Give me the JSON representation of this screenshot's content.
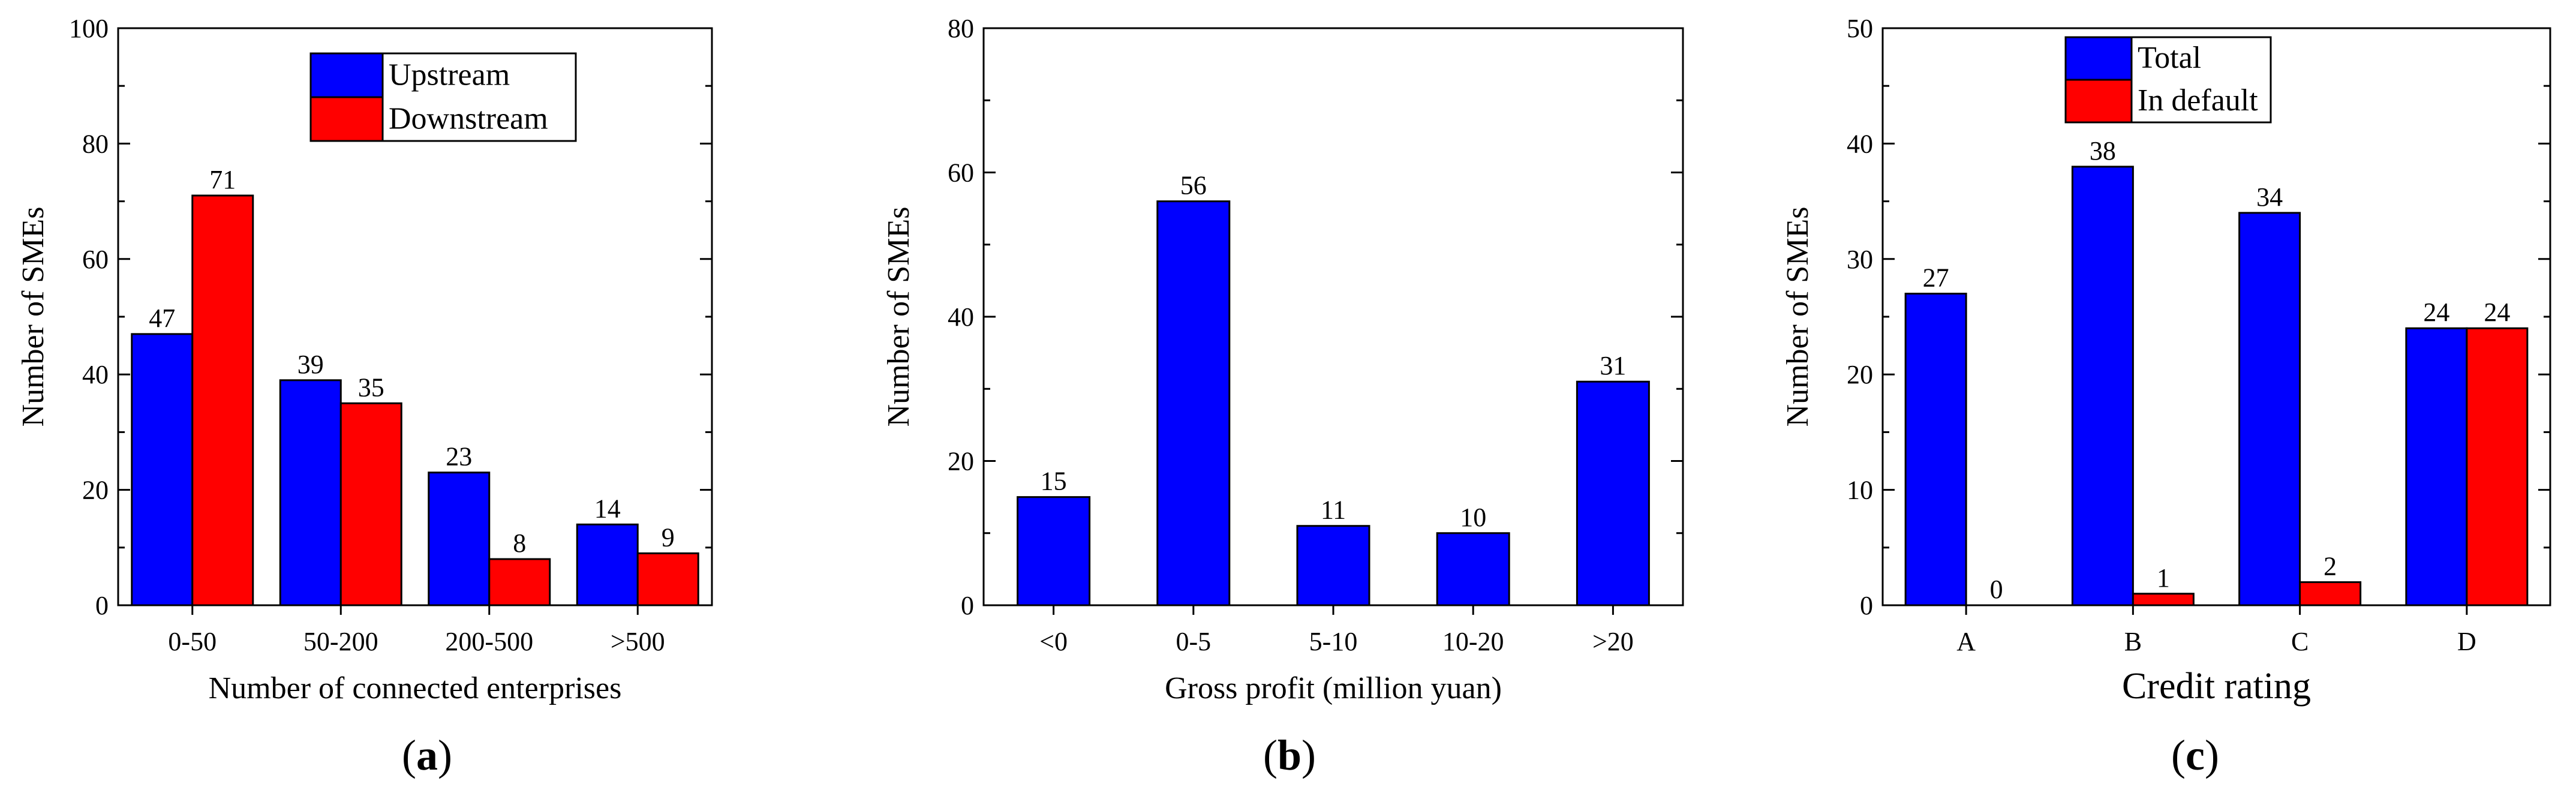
{
  "colors": {
    "blue": "#0000ff",
    "red": "#ff0000",
    "axis": "#000000"
  },
  "chart_data": [
    {
      "id": "a",
      "type": "bar",
      "panel_label_prefix": "(",
      "panel_label_letter": "a",
      "panel_label_suffix": ")",
      "xlabel": "Number of connected enterprises",
      "ylabel": "Number of SMEs",
      "ylim": [
        0,
        100
      ],
      "yticks": [
        "0",
        "20",
        "40",
        "60",
        "80",
        "100"
      ],
      "categories": [
        "0-50",
        "50-200",
        "200-500",
        ">500"
      ],
      "legend_position": "top-center",
      "series": [
        {
          "name": "Upstream",
          "color": "#0000ff",
          "values": [
            47,
            39,
            23,
            14
          ],
          "labels": [
            "47",
            "39",
            "23",
            "14"
          ]
        },
        {
          "name": "Downstream",
          "color": "#ff0000",
          "values": [
            71,
            35,
            8,
            9
          ],
          "labels": [
            "71",
            "35",
            "8",
            "9"
          ]
        }
      ]
    },
    {
      "id": "b",
      "type": "bar",
      "panel_label_prefix": "(",
      "panel_label_letter": "b",
      "panel_label_suffix": ")",
      "xlabel": "Gross profit (million yuan)",
      "ylabel": "Number of SMEs",
      "ylim": [
        0,
        80
      ],
      "yticks": [
        "0",
        "20",
        "40",
        "60",
        "80"
      ],
      "categories": [
        "<0",
        "0-5",
        "5-10",
        "10-20",
        ">20"
      ],
      "series": [
        {
          "name": "SMEs",
          "color": "#0000ff",
          "values": [
            15,
            56,
            11,
            10,
            31
          ],
          "labels": [
            "15",
            "56",
            "11",
            "10",
            "31"
          ]
        }
      ]
    },
    {
      "id": "c",
      "type": "bar",
      "panel_label_prefix": "(",
      "panel_label_letter": "c",
      "panel_label_suffix": ")",
      "xlabel": "Credit rating",
      "ylabel": "Number of SMEs",
      "ylim": [
        0,
        50
      ],
      "yticks": [
        "0",
        "10",
        "20",
        "30",
        "40",
        "50"
      ],
      "categories": [
        "A",
        "B",
        "C",
        "D"
      ],
      "legend_position": "top-left",
      "series": [
        {
          "name": "Total",
          "color": "#0000ff",
          "values": [
            27,
            38,
            34,
            24
          ],
          "labels": [
            "27",
            "38",
            "34",
            "24"
          ]
        },
        {
          "name": "In default",
          "color": "#ff0000",
          "values": [
            0,
            1,
            2,
            24
          ],
          "labels": [
            "0",
            "1",
            "2",
            "24"
          ]
        }
      ]
    }
  ]
}
